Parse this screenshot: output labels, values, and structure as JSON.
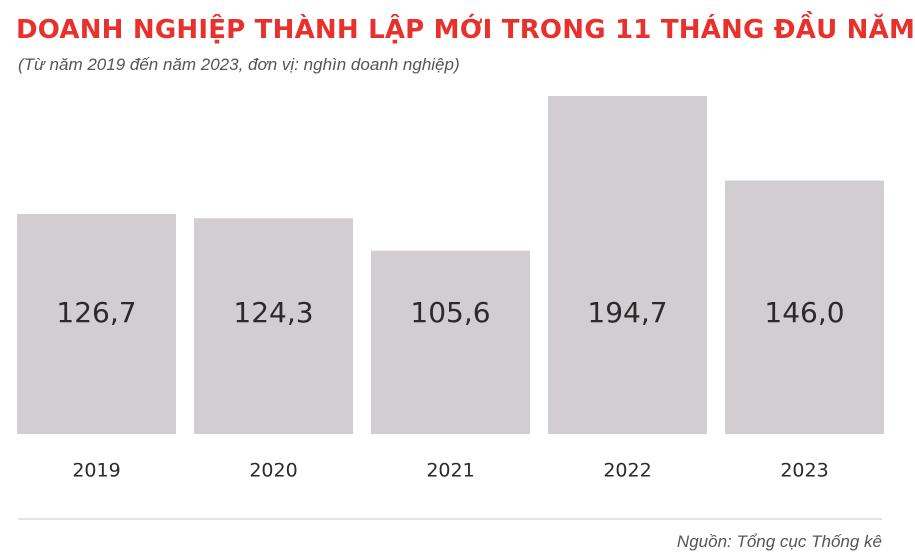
{
  "title": "DOANH NGHIỆP THÀNH LẬP MỚI TRONG 11 THÁNG ĐẦU NĂM",
  "subtitle": "(Từ năm 2019 đến năm 2023, đơn vị: nghìn doanh nghiệp)",
  "source": "Nguồn: Tổng cục Thống kê",
  "colors": {
    "title": "#e8302c",
    "bar": "#d1cdd0",
    "bar_label": "#2a2a2a",
    "axis_label": "#2a2a2a",
    "divider": "#c8c8c8"
  },
  "chart_data": {
    "type": "bar",
    "title": "DOANH NGHIỆP THÀNH LẬP MỚI TRONG 11 THÁNG ĐẦU NĂM",
    "subtitle": "(Từ năm 2019 đến năm 2023, đơn vị: nghìn doanh nghiệp)",
    "categories": [
      "2019",
      "2020",
      "2021",
      "2022",
      "2023"
    ],
    "values": [
      126.7,
      124.3,
      105.6,
      194.7,
      146.0
    ],
    "value_labels": [
      "126,7",
      "124,3",
      "105,6",
      "194,7",
      "146,0"
    ],
    "xlabel": "",
    "ylabel": "",
    "ylim": [
      0,
      194.7
    ],
    "grid": false,
    "legend": "none"
  }
}
